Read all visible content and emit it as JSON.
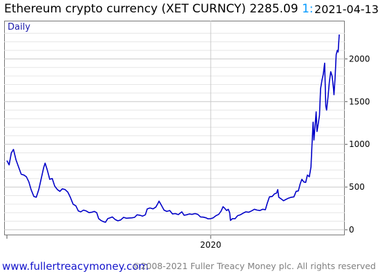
{
  "header": {
    "title": "Ethereum crypto currency",
    "ticker": "(XET CURNCY)",
    "last_price": "2285.09",
    "price_cut_glyph": "1:",
    "date": "2021-04-13",
    "period": "Daily"
  },
  "footer": {
    "website": "www.fullertreacymoney.com",
    "copyright": "©2008-2021 Fuller Treacy Money plc. All rights reserved"
  },
  "colors": {
    "line": "#0000c8",
    "grid": "#c8c8c8",
    "frame": "#777777"
  },
  "chart_data": {
    "type": "line",
    "ylim": [
      0,
      2350
    ],
    "y_ticks": [
      0,
      500,
      1000,
      1500,
      2000
    ],
    "y_minor_step": 100,
    "x_ticks": [
      {
        "x": "2020-01-01",
        "label": "2020"
      }
    ],
    "xlim": [
      "2017-12-20",
      "2021-04-13"
    ],
    "grid": true,
    "series": [
      {
        "values": [
          [
            "2017-12-20",
            810
          ],
          [
            "2017-12-28",
            760
          ],
          [
            "2018-01-05",
            900
          ],
          [
            "2018-01-13",
            940
          ],
          [
            "2018-01-22",
            820
          ],
          [
            "2018-02-01",
            730
          ],
          [
            "2018-02-10",
            650
          ],
          [
            "2018-02-20",
            640
          ],
          [
            "2018-03-01",
            620
          ],
          [
            "2018-03-10",
            560
          ],
          [
            "2018-03-18",
            470
          ],
          [
            "2018-03-28",
            390
          ],
          [
            "2018-04-06",
            380
          ],
          [
            "2018-04-15",
            470
          ],
          [
            "2018-04-24",
            600
          ],
          [
            "2018-05-03",
            730
          ],
          [
            "2018-05-08",
            780
          ],
          [
            "2018-05-16",
            700
          ],
          [
            "2018-05-25",
            590
          ],
          [
            "2018-06-03",
            600
          ],
          [
            "2018-06-12",
            510
          ],
          [
            "2018-06-22",
            470
          ],
          [
            "2018-07-01",
            450
          ],
          [
            "2018-07-10",
            480
          ],
          [
            "2018-07-20",
            470
          ],
          [
            "2018-07-30",
            440
          ],
          [
            "2018-08-08",
            380
          ],
          [
            "2018-08-18",
            300
          ],
          [
            "2018-08-28",
            280
          ],
          [
            "2018-09-06",
            220
          ],
          [
            "2018-09-15",
            210
          ],
          [
            "2018-09-25",
            230
          ],
          [
            "2018-10-05",
            220
          ],
          [
            "2018-10-15",
            200
          ],
          [
            "2018-10-25",
            205
          ],
          [
            "2018-11-03",
            215
          ],
          [
            "2018-11-12",
            200
          ],
          [
            "2018-11-19",
            130
          ],
          [
            "2018-11-27",
            110
          ],
          [
            "2018-12-06",
            95
          ],
          [
            "2018-12-14",
            88
          ],
          [
            "2018-12-22",
            130
          ],
          [
            "2018-12-30",
            140
          ],
          [
            "2019-01-08",
            150
          ],
          [
            "2019-01-18",
            120
          ],
          [
            "2019-01-28",
            105
          ],
          [
            "2019-02-07",
            115
          ],
          [
            "2019-02-18",
            145
          ],
          [
            "2019-02-28",
            135
          ],
          [
            "2019-03-10",
            138
          ],
          [
            "2019-03-20",
            140
          ],
          [
            "2019-03-30",
            145
          ],
          [
            "2019-04-08",
            175
          ],
          [
            "2019-04-18",
            170
          ],
          [
            "2019-04-28",
            160
          ],
          [
            "2019-05-08",
            175
          ],
          [
            "2019-05-15",
            245
          ],
          [
            "2019-05-25",
            255
          ],
          [
            "2019-06-05",
            245
          ],
          [
            "2019-06-15",
            265
          ],
          [
            "2019-06-24",
            315
          ],
          [
            "2019-06-27",
            335
          ],
          [
            "2019-07-05",
            290
          ],
          [
            "2019-07-15",
            230
          ],
          [
            "2019-07-25",
            215
          ],
          [
            "2019-08-05",
            225
          ],
          [
            "2019-08-15",
            185
          ],
          [
            "2019-08-25",
            190
          ],
          [
            "2019-09-05",
            178
          ],
          [
            "2019-09-18",
            210
          ],
          [
            "2019-09-26",
            170
          ],
          [
            "2019-10-05",
            175
          ],
          [
            "2019-10-15",
            185
          ],
          [
            "2019-10-25",
            180
          ],
          [
            "2019-11-05",
            190
          ],
          [
            "2019-11-15",
            180
          ],
          [
            "2019-11-25",
            150
          ],
          [
            "2019-12-05",
            148
          ],
          [
            "2019-12-15",
            140
          ],
          [
            "2019-12-22",
            128
          ],
          [
            "2020-01-01",
            130
          ],
          [
            "2020-01-10",
            140
          ],
          [
            "2020-01-20",
            165
          ],
          [
            "2020-01-30",
            180
          ],
          [
            "2020-02-08",
            220
          ],
          [
            "2020-02-15",
            270
          ],
          [
            "2020-02-20",
            255
          ],
          [
            "2020-02-28",
            225
          ],
          [
            "2020-03-05",
            240
          ],
          [
            "2020-03-10",
            200
          ],
          [
            "2020-03-13",
            110
          ],
          [
            "2020-03-20",
            130
          ],
          [
            "2020-03-30",
            130
          ],
          [
            "2020-04-08",
            165
          ],
          [
            "2020-04-18",
            175
          ],
          [
            "2020-04-28",
            195
          ],
          [
            "2020-05-08",
            210
          ],
          [
            "2020-05-18",
            205
          ],
          [
            "2020-05-28",
            220
          ],
          [
            "2020-06-08",
            240
          ],
          [
            "2020-06-18",
            230
          ],
          [
            "2020-06-28",
            225
          ],
          [
            "2020-07-08",
            240
          ],
          [
            "2020-07-18",
            235
          ],
          [
            "2020-07-25",
            310
          ],
          [
            "2020-08-02",
            385
          ],
          [
            "2020-08-12",
            390
          ],
          [
            "2020-08-20",
            420
          ],
          [
            "2020-08-28",
            430
          ],
          [
            "2020-09-01",
            470
          ],
          [
            "2020-09-05",
            380
          ],
          [
            "2020-09-12",
            365
          ],
          [
            "2020-09-22",
            340
          ],
          [
            "2020-10-01",
            355
          ],
          [
            "2020-10-10",
            370
          ],
          [
            "2020-10-20",
            380
          ],
          [
            "2020-10-30",
            385
          ],
          [
            "2020-11-07",
            450
          ],
          [
            "2020-11-15",
            455
          ],
          [
            "2020-11-22",
            540
          ],
          [
            "2020-11-28",
            590
          ],
          [
            "2020-12-05",
            560
          ],
          [
            "2020-12-12",
            555
          ],
          [
            "2020-12-18",
            640
          ],
          [
            "2020-12-25",
            620
          ],
          [
            "2020-12-31",
            735
          ],
          [
            "2021-01-04",
            1000
          ],
          [
            "2021-01-08",
            1260
          ],
          [
            "2021-01-11",
            1050
          ],
          [
            "2021-01-19",
            1380
          ],
          [
            "2021-01-22",
            1150
          ],
          [
            "2021-01-27",
            1250
          ],
          [
            "2021-01-31",
            1340
          ],
          [
            "2021-02-04",
            1650
          ],
          [
            "2021-02-09",
            1750
          ],
          [
            "2021-02-14",
            1820
          ],
          [
            "2021-02-19",
            1950
          ],
          [
            "2021-02-23",
            1450
          ],
          [
            "2021-02-26",
            1400
          ],
          [
            "2021-03-03",
            1550
          ],
          [
            "2021-03-08",
            1730
          ],
          [
            "2021-03-13",
            1850
          ],
          [
            "2021-03-18",
            1800
          ],
          [
            "2021-03-23",
            1650
          ],
          [
            "2021-03-25",
            1580
          ],
          [
            "2021-03-29",
            1780
          ],
          [
            "2021-04-02",
            2050
          ],
          [
            "2021-04-06",
            2100
          ],
          [
            "2021-04-09",
            2080
          ],
          [
            "2021-04-13",
            2285
          ]
        ]
      }
    ]
  }
}
